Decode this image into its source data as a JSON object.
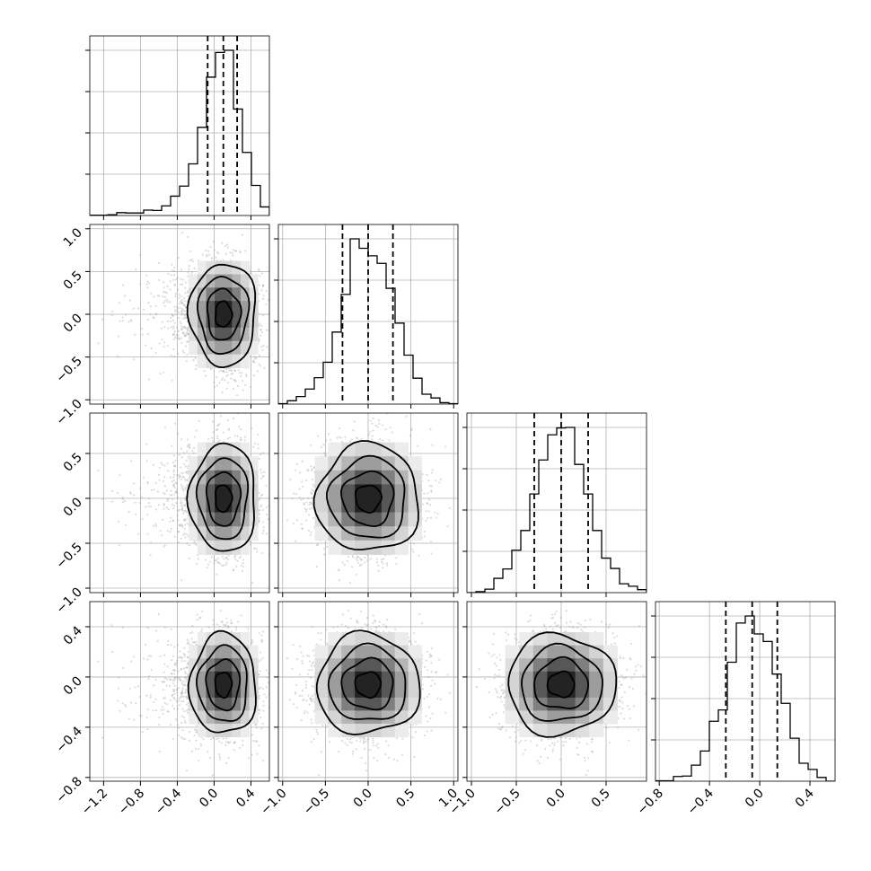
{
  "chart_data": {
    "type": "corner",
    "grid": true,
    "parameters": [
      {
        "mean": 0.1,
        "std": 0.18,
        "left_tail": true,
        "quantiles": [
          -0.07,
          0.1,
          0.25
        ],
        "range": [
          -1.35,
          0.6
        ],
        "ticks": [
          -1.2,
          -0.8,
          -0.4,
          0.0,
          0.4
        ],
        "tick_labels": [
          "−1.2",
          "−0.8",
          "−0.4",
          "0.0",
          "0.4"
        ]
      },
      {
        "mean": 0.0,
        "std": 0.3,
        "quantiles": [
          -0.3,
          0.0,
          0.29
        ],
        "range": [
          -1.05,
          1.05
        ],
        "ticks": [
          -1.0,
          -0.5,
          0.0,
          0.5,
          1.0
        ],
        "tick_labels": [
          "−1.0",
          "−0.5",
          "0.0",
          "0.5",
          "1.0"
        ]
      },
      {
        "mean": 0.0,
        "std": 0.3,
        "quantiles": [
          -0.3,
          0.0,
          0.3
        ],
        "range": [
          -1.05,
          0.95
        ],
        "ticks": [
          -1.0,
          -0.5,
          0.0,
          0.5
        ],
        "tick_labels": [
          "−1.0",
          "−0.5",
          "0.0",
          "0.5"
        ]
      },
      {
        "mean": -0.06,
        "std": 0.2,
        "quantiles": [
          -0.27,
          -0.06,
          0.14
        ],
        "range": [
          -0.83,
          0.6
        ],
        "ticks": [
          -0.8,
          -0.4,
          0.0,
          0.4
        ],
        "tick_labels": [
          "−0.8",
          "−0.4",
          "0.0",
          "0.4"
        ]
      }
    ],
    "hist_bins": 20
  }
}
